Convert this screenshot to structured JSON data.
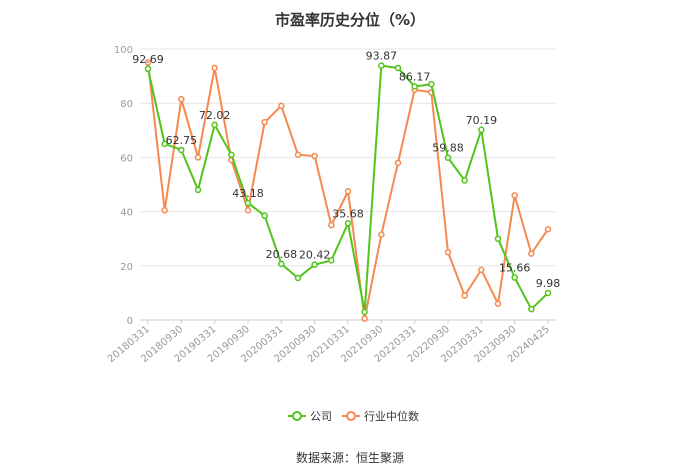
{
  "chart_data": {
    "type": "line",
    "title": "市盈率历史分位（%）",
    "source": "数据来源：恒生聚源",
    "ylim": [
      0,
      100
    ],
    "yticks": [
      0,
      20,
      40,
      60,
      80,
      100
    ],
    "grid": true,
    "legend_position": "bottom-center",
    "x_tick_labels": [
      "20180331",
      "20180930",
      "20190331",
      "20190930",
      "20200331",
      "20200930",
      "20210331",
      "20210930",
      "20220331",
      "20220930",
      "20230331",
      "20230930",
      "20240425"
    ],
    "series": [
      {
        "name": "公司",
        "color": "#52c41a",
        "values": [
          92.69,
          65,
          62.75,
          48,
          72.02,
          61,
          43.18,
          38.5,
          20.68,
          15.5,
          20.42,
          22,
          35.68,
          3,
          93.87,
          93,
          86.17,
          87,
          59.88,
          51.5,
          70.19,
          30,
          15.66,
          4,
          9.98
        ],
        "labels": {
          "0": "92.69",
          "2": "62.75",
          "4": "72.02",
          "6": "43.18",
          "8": "20.68",
          "10": "20.42",
          "12": "35.68",
          "14": "93.87",
          "16": "86.17",
          "18": "59.88",
          "20": "70.19",
          "22": "15.66",
          "24": "9.98"
        }
      },
      {
        "name": "行业中位数",
        "color": "#f5894f",
        "values": [
          95,
          40.5,
          81.5,
          60,
          93,
          59,
          40.5,
          73,
          79,
          61,
          60.5,
          35,
          47.5,
          0.5,
          31.5,
          58,
          85,
          84,
          25,
          9,
          18.5,
          6,
          46,
          24.5,
          33.5
        ]
      }
    ]
  }
}
